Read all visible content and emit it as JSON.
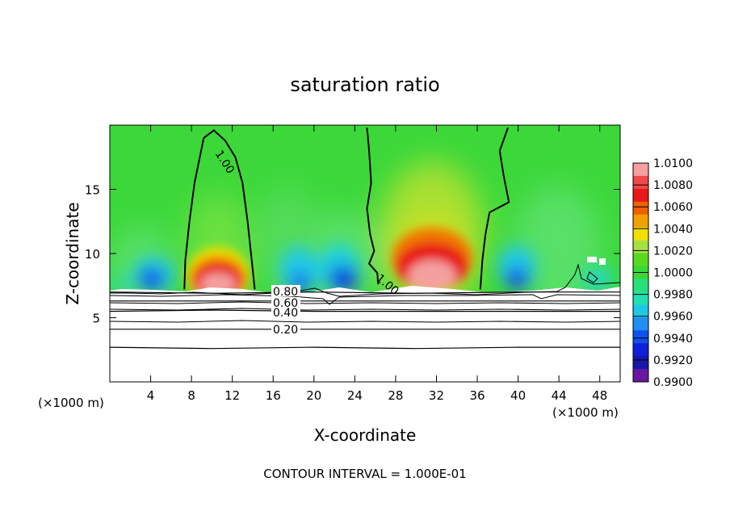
{
  "chart_data": {
    "type": "heatmap",
    "title": "saturation ratio",
    "xlabel": "X-coordinate",
    "ylabel": "Z-coordinate",
    "x_unit_left": "(×1000 m)",
    "x_unit_right": "(×1000 m)",
    "xlim": [
      0,
      50
    ],
    "ylim": [
      0,
      20
    ],
    "x_ticks": [
      4,
      8,
      12,
      16,
      20,
      24,
      28,
      32,
      36,
      40,
      44,
      48
    ],
    "y_ticks": [
      5,
      10,
      15
    ],
    "grid": false,
    "legend_position": "right",
    "colorbar": {
      "labels": [
        "1.0100",
        "1.0080",
        "1.0060",
        "1.0040",
        "1.0020",
        "1.0000",
        "0.9980",
        "0.9960",
        "0.9940",
        "0.9920",
        "0.9900"
      ],
      "colors": [
        "#f4a0a0",
        "#f04848",
        "#e81818",
        "#f06000",
        "#f0a000",
        "#f0e000",
        "#a8e040",
        "#58d820",
        "#38d838",
        "#28e078",
        "#20e0b0",
        "#20c8e8",
        "#2090f0",
        "#1050f0",
        "#1020d8",
        "#1818a8",
        "#6818a0"
      ]
    },
    "contour_interval_label": "CONTOUR INTERVAL = 1.000E-01",
    "contour_labels": [
      "1.00",
      "1.00",
      "0.80",
      "0.60",
      "0.40",
      "0.20"
    ],
    "series": [
      {
        "name": "1.00",
        "x": [
          7.3,
          7.4,
          7.8,
          8.3,
          9.2,
          10.2,
          11.3,
          12.3,
          13.0,
          13.5,
          13.9,
          14.2
        ],
        "y": [
          7.2,
          9.5,
          12.5,
          15.5,
          19.0,
          19.6,
          18.8,
          17.5,
          15.5,
          12.5,
          9.5,
          7.2
        ]
      },
      {
        "name": "1.00",
        "x": [
          25.2,
          25.4,
          25.6,
          25.2,
          25.5,
          25.9,
          25.4,
          26.2,
          26.3
        ],
        "y": [
          19.8,
          18.0,
          15.5,
          13.5,
          11.5,
          10.2,
          9.2,
          8.5,
          7.6
        ]
      },
      {
        "name": "1.00",
        "x": [
          39.0,
          38.2,
          38.6,
          39.1,
          37.2,
          36.8,
          36.5,
          36.3
        ],
        "y": [
          19.8,
          18.0,
          16.0,
          14.0,
          13.2,
          11.5,
          9.5,
          7.2
        ]
      },
      {
        "name": "0.80",
        "x": [
          0,
          10,
          20,
          30,
          40,
          50
        ],
        "y": [
          7.0,
          6.9,
          7.0,
          6.9,
          7.0,
          7.0
        ]
      },
      {
        "name": "0.60",
        "x": [
          0,
          10,
          20,
          30,
          40,
          50
        ],
        "y": [
          6.3,
          6.3,
          6.3,
          6.3,
          6.3,
          6.3
        ]
      },
      {
        "name": "0.40",
        "x": [
          0,
          10,
          20,
          30,
          40,
          50
        ],
        "y": [
          5.5,
          5.6,
          5.5,
          5.5,
          5.5,
          5.5
        ]
      },
      {
        "name": "0.20",
        "x": [
          0,
          10,
          20,
          30,
          40,
          50
        ],
        "y": [
          4.1,
          4.1,
          4.1,
          4.1,
          4.1,
          4.1
        ]
      },
      {
        "name": "",
        "x": [
          0,
          10,
          20,
          30,
          40,
          50
        ],
        "y": [
          2.7,
          2.6,
          2.7,
          2.6,
          2.7,
          2.7
        ]
      }
    ]
  }
}
